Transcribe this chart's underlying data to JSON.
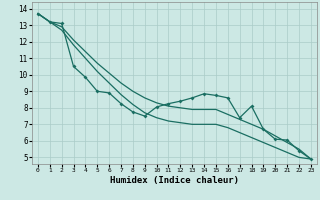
{
  "xlabel": "Humidex (Indice chaleur)",
  "bg_color": "#cce8e4",
  "grid_color": "#aaccc8",
  "line_color": "#1a6e62",
  "xlim": [
    -0.5,
    23.5
  ],
  "ylim": [
    4.6,
    14.4
  ],
  "xticks": [
    0,
    1,
    2,
    3,
    4,
    5,
    6,
    7,
    8,
    9,
    10,
    11,
    12,
    13,
    14,
    15,
    16,
    17,
    18,
    19,
    20,
    21,
    22,
    23
  ],
  "yticks": [
    5,
    6,
    7,
    8,
    9,
    10,
    11,
    12,
    13,
    14
  ],
  "upper_x": [
    0,
    1,
    2,
    3,
    4,
    5,
    6,
    7,
    8,
    9,
    10,
    11,
    12,
    13,
    14,
    15,
    16,
    17,
    18,
    19,
    20,
    21,
    22,
    23
  ],
  "upper_y": [
    13.7,
    13.2,
    12.9,
    12.1,
    11.4,
    10.7,
    10.1,
    9.5,
    9.0,
    8.6,
    8.3,
    8.1,
    8.0,
    7.9,
    7.9,
    7.9,
    7.6,
    7.3,
    7.0,
    6.7,
    6.3,
    5.9,
    5.5,
    4.9
  ],
  "mid_x": [
    0,
    1,
    2,
    3,
    4,
    5,
    6,
    7,
    8,
    9,
    10,
    11,
    12,
    13,
    14,
    15,
    16,
    17,
    18,
    19,
    20,
    21,
    22,
    23
  ],
  "mid_y": [
    13.7,
    13.2,
    13.1,
    10.5,
    9.85,
    9.0,
    8.9,
    8.25,
    7.75,
    7.5,
    8.05,
    8.25,
    8.4,
    8.6,
    8.85,
    8.75,
    8.6,
    7.4,
    8.1,
    6.7,
    6.1,
    6.05,
    5.4,
    4.9
  ],
  "lower_x": [
    0,
    1,
    2,
    3,
    4,
    5,
    6,
    7,
    8,
    9,
    10,
    11,
    12,
    13,
    14,
    15,
    16,
    17,
    18,
    19,
    20,
    21,
    22,
    23
  ],
  "lower_y": [
    13.7,
    13.2,
    12.7,
    11.8,
    11.0,
    10.2,
    9.5,
    8.8,
    8.2,
    7.7,
    7.4,
    7.2,
    7.1,
    7.0,
    7.0,
    7.0,
    6.8,
    6.5,
    6.2,
    5.9,
    5.6,
    5.3,
    5.0,
    4.9
  ]
}
